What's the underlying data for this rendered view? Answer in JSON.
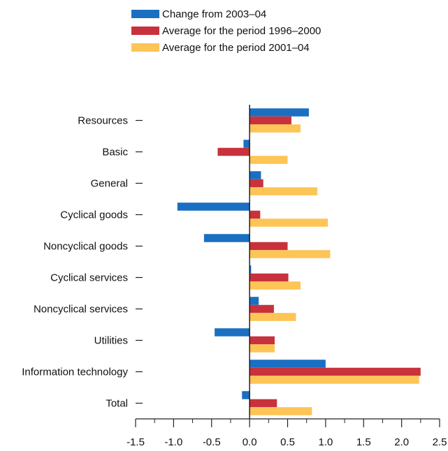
{
  "chart_data": {
    "type": "bar",
    "orientation": "horizontal",
    "categories": [
      "Resources",
      "Basic",
      "General",
      "Cyclical goods",
      "Noncyclical goods",
      "Cyclical services",
      "Noncyclical services",
      "Utilities",
      "Information technology",
      "Total"
    ],
    "series": [
      {
        "name": "Change from 2003–04",
        "color": "#1a6fc2",
        "values": [
          0.78,
          -0.08,
          0.15,
          -0.95,
          -0.6,
          0.02,
          0.12,
          -0.46,
          1.0,
          -0.1
        ]
      },
      {
        "name": "Average for the period 1996–2000",
        "color": "#c8323c",
        "values": [
          0.55,
          -0.42,
          0.18,
          0.14,
          0.5,
          0.51,
          0.32,
          0.33,
          2.25,
          0.36
        ]
      },
      {
        "name": "Average for the period 2001–04",
        "color": "#fdc456",
        "values": [
          0.67,
          0.5,
          0.89,
          1.03,
          1.06,
          0.67,
          0.61,
          0.33,
          2.23,
          0.82
        ]
      }
    ],
    "xlim": [
      -1.5,
      2.5
    ],
    "xticks": [
      "-1.5",
      "-1.0",
      "-0.5",
      "0.0",
      "0.5",
      "1.0",
      "1.5",
      "2.0",
      "2.5"
    ],
    "legend_position": "top",
    "grid": false
  }
}
